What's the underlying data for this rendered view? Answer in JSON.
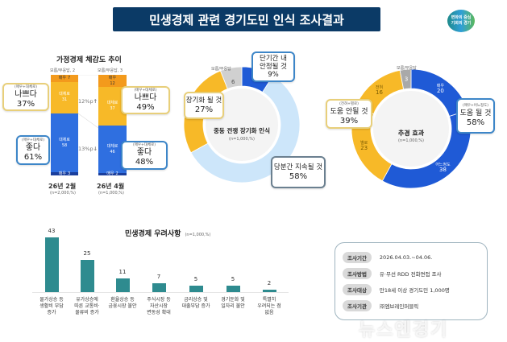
{
  "header": {
    "title": "민생경제 관련 경기도민 인식 조사결과",
    "logo_text": [
      "변화의 중심",
      "기회의 경기"
    ]
  },
  "watermark": "뉴스엔경기",
  "colors": {
    "navy": "#0b3a66",
    "blue": "#2f6fe0",
    "dark_blue": "#1a3e9c",
    "yellow": "#f7b928",
    "orange": "#f39a1c",
    "light_blue": "#cde6fa",
    "gray": "#bfbfbf",
    "teal": "#2e8b8f"
  },
  "chart_data": [
    {
      "type": "bar",
      "stacked": true,
      "title": "가정경제 체감도 추이",
      "categories": [
        "26년 2월",
        "26년 4월"
      ],
      "category_notes": [
        "(n=2,000,%)",
        "(n=1,000,%)"
      ],
      "series": [
        {
          "name": "매우",
          "group": "나쁘다",
          "values": [
            7,
            12
          ]
        },
        {
          "name": "대체로",
          "group": "나쁘다",
          "values": [
            31,
            37
          ]
        },
        {
          "name": "대체로",
          "group": "좋다",
          "values": [
            58,
            46
          ]
        },
        {
          "name": "매우",
          "group": "좋다",
          "values": [
            3,
            2
          ]
        }
      ],
      "dont_know": {
        "label": "모름/무응답",
        "values": [
          2,
          3
        ]
      },
      "summary": {
        "bad": {
          "label": "나쁘다",
          "sub": "(매우+대체로)",
          "values": [
            "37%",
            "49%"
          ]
        },
        "good": {
          "label": "좋다",
          "sub": "(매우+대체로)",
          "values": [
            "61%",
            "48%"
          ]
        }
      },
      "deltas": [
        "12%p",
        "13%p"
      ],
      "delta_dirs": [
        "↑",
        "↓"
      ]
    },
    {
      "type": "pie",
      "donut": true,
      "title": "중동 전쟁 장기화 인식",
      "note": "(n=1,000,%)",
      "slices": [
        {
          "name": "단기간 내 안정될 것",
          "value": 9,
          "color": "#1f5ad6"
        },
        {
          "name": "당분간 지속될 것",
          "value": 58,
          "color": "#cde6fa"
        },
        {
          "name": "장기화 될 것",
          "value": 27,
          "color": "#f7b928"
        },
        {
          "name": "모름/무응답",
          "value": 6,
          "color": "#d0d0d0"
        }
      ],
      "callouts": [
        {
          "l1": "단기간 내",
          "l2": "안정될 것",
          "pct": "9%"
        },
        {
          "l1": "장기화 될 것",
          "pct": "27%"
        },
        {
          "l1": "당분간 지속될 것",
          "pct": "58%"
        }
      ],
      "dk_label": "모름/무응답",
      "dk_value": "6"
    },
    {
      "type": "pie",
      "donut": true,
      "title": "추경 효과",
      "note": "(n=1,000,%)",
      "slices": [
        {
          "name": "매우",
          "value": 20,
          "color": "#1f5ad6"
        },
        {
          "name": "어느정도",
          "value": 38,
          "color": "#1f5ad6"
        },
        {
          "name": "별로",
          "value": 23,
          "color": "#f7b928"
        },
        {
          "name": "전혀",
          "value": 16,
          "color": "#f7b928"
        },
        {
          "name": "모름/무응답",
          "value": 3,
          "color": "#a9a9a9"
        }
      ],
      "callouts": [
        {
          "sub": "(매우+어느정도)",
          "l1": "도움 될 것",
          "pct": "58%"
        },
        {
          "sub": "(전혀+별로)",
          "l1": "도움 안될 것",
          "pct": "39%"
        }
      ],
      "dk_label": "모름/무응답"
    },
    {
      "type": "bar",
      "title": "민생경제 우려사항",
      "note": "(n=1,000,%)",
      "categories": [
        "물가상승 등 생활비 부담 증가",
        "유가상승에 따른 교통비·물류비 증가",
        "환율상승 등 금융시장 불안",
        "주식시장 등 자산시장 변동성 확대",
        "금리상승 및 대출부담 증가",
        "경기둔화 및 일자리 불안",
        "특별히 우려되는 점 없음"
      ],
      "values": [
        43,
        25,
        11,
        7,
        5,
        5,
        2
      ],
      "ylim": [
        0,
        45
      ]
    }
  ],
  "info": {
    "rows": [
      {
        "label": "조사기간",
        "value": "2026.04.03.~04.06."
      },
      {
        "label": "조사방법",
        "value": "유·무선 RDD 전화면접 조사"
      },
      {
        "label": "조사대상",
        "value": "만18세 이상 경기도민 1,000명"
      },
      {
        "label": "조사기관",
        "value": "㈜엠브레인퍼블릭"
      }
    ]
  }
}
